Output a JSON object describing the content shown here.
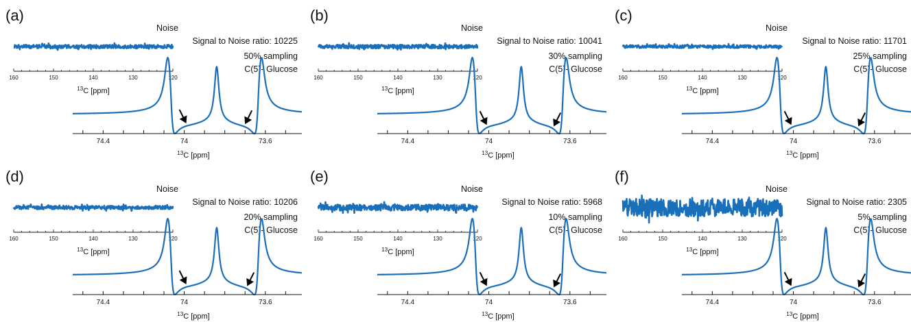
{
  "figure": {
    "noise_title": "Noise",
    "snr_prefix": "Signal to Noise ratio:",
    "sampling_suffix": "sampling",
    "carbon_label": "C(5)- Glucose",
    "axis_label_sup": "13",
    "axis_label_main": "C [ppm]",
    "line_color": "#1a6fba",
    "arrow_color": "#000000"
  },
  "chart_data": [
    {
      "type": "line",
      "panel": "(a)",
      "snr": "10225",
      "sampling": "50%",
      "inset": {
        "title": "Noise",
        "xlim": [
          160,
          120
        ],
        "xticks": [
          160,
          150,
          140,
          130,
          120
        ],
        "noise_amplitude": 1.0
      },
      "main": {
        "xlim": [
          74.55,
          73.42
        ],
        "xticks": [
          74.4,
          74.0,
          73.6
        ],
        "xtick_labels": [
          "74.4",
          "74",
          "73.6"
        ],
        "peaks_ppm": [
          74.07,
          73.84,
          73.63
        ],
        "arrows_ppm": [
          73.99,
          73.7
        ]
      }
    },
    {
      "type": "line",
      "panel": "(b)",
      "snr": "10041",
      "sampling": "30%",
      "inset": {
        "title": "Noise",
        "xlim": [
          160,
          120
        ],
        "xticks": [
          160,
          150,
          140,
          130,
          120
        ],
        "noise_amplitude": 1.05
      },
      "main": {
        "xlim": [
          74.55,
          73.42
        ],
        "xticks": [
          74.4,
          74.0,
          73.6
        ],
        "xtick_labels": [
          "74.4",
          "74",
          "73.6"
        ],
        "peaks_ppm": [
          74.07,
          73.84,
          73.63
        ],
        "arrows_ppm": [
          74.01,
          73.68
        ]
      }
    },
    {
      "type": "line",
      "panel": "(c)",
      "snr": "11701",
      "sampling": "25%",
      "inset": {
        "title": "Noise",
        "xlim": [
          160,
          120
        ],
        "xticks": [
          160,
          150,
          140,
          130,
          120
        ],
        "noise_amplitude": 0.85
      },
      "main": {
        "xlim": [
          74.55,
          73.42
        ],
        "xticks": [
          74.4,
          74.0,
          73.6
        ],
        "xtick_labels": [
          "74.4",
          "74",
          "73.6"
        ],
        "peaks_ppm": [
          74.07,
          73.84,
          73.63
        ],
        "arrows_ppm": [
          74.01,
          73.68
        ]
      }
    },
    {
      "type": "line",
      "panel": "(d)",
      "snr": "10206",
      "sampling": "20%",
      "inset": {
        "title": "Noise",
        "xlim": [
          160,
          120
        ],
        "xticks": [
          160,
          150,
          140,
          130,
          120
        ],
        "noise_amplitude": 1.0
      },
      "main": {
        "xlim": [
          74.55,
          73.42
        ],
        "xticks": [
          74.4,
          74.0,
          73.6
        ],
        "xtick_labels": [
          "74.4",
          "74",
          "73.6"
        ],
        "peaks_ppm": [
          74.07,
          73.84,
          73.63
        ],
        "arrows_ppm": [
          73.99,
          73.69
        ]
      }
    },
    {
      "type": "line",
      "panel": "(e)",
      "snr": "5968",
      "sampling": "10%",
      "inset": {
        "title": "Noise",
        "xlim": [
          160,
          120
        ],
        "xticks": [
          160,
          150,
          140,
          130,
          120
        ],
        "noise_amplitude": 1.7
      },
      "main": {
        "xlim": [
          74.55,
          73.42
        ],
        "xticks": [
          74.4,
          74.0,
          73.6
        ],
        "xtick_labels": [
          "74.4",
          "74",
          "73.6"
        ],
        "peaks_ppm": [
          74.07,
          73.84,
          73.63
        ],
        "arrows_ppm": [
          74.01,
          73.68
        ]
      }
    },
    {
      "type": "line",
      "panel": "(f)",
      "snr": "2305",
      "sampling": "5%",
      "inset": {
        "title": "Noise",
        "xlim": [
          160,
          120
        ],
        "xticks": [
          160,
          150,
          140,
          130,
          120
        ],
        "noise_amplitude": 5.0
      },
      "main": {
        "xlim": [
          74.55,
          73.42
        ],
        "xticks": [
          74.4,
          74.0,
          73.6
        ],
        "xtick_labels": [
          "74.4",
          "74",
          "73.6"
        ],
        "peaks_ppm": [
          74.07,
          73.84,
          73.63
        ],
        "arrows_ppm": [
          74.01,
          73.68
        ]
      }
    }
  ]
}
